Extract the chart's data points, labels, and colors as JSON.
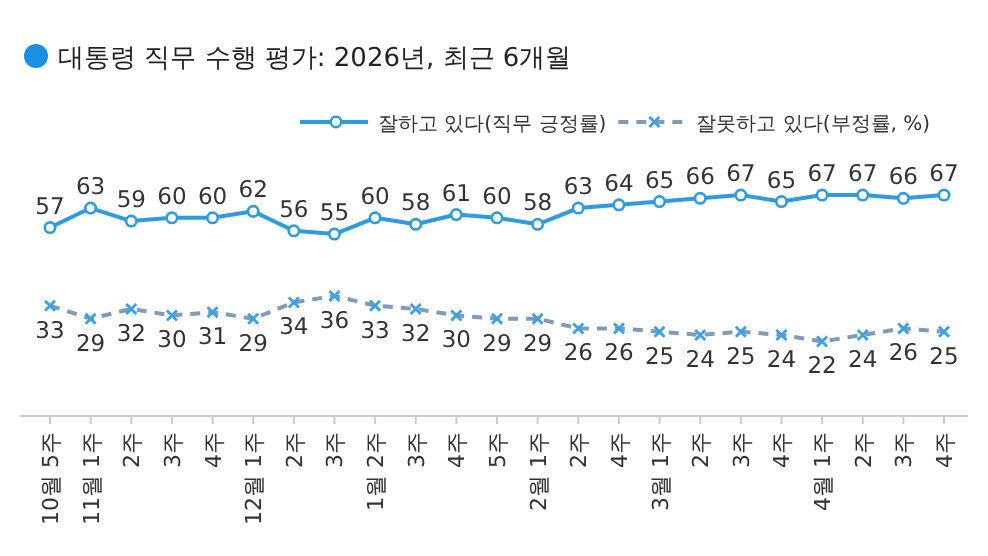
{
  "chart_data": {
    "type": "line",
    "title": "대통령 직무 수행 평가: 2026년, 최근 6개월",
    "categories": [
      "10월 5주",
      "11월 1주",
      "2주",
      "3주",
      "4주",
      "12월 1주",
      "2주",
      "3주",
      "1월 2주",
      "3주",
      "4주",
      "5주",
      "2월 1주",
      "2주",
      "4주",
      "3월 1주",
      "2주",
      "3주",
      "4주",
      "4월 1주",
      "2주",
      "3주",
      "4주"
    ],
    "series": [
      {
        "name": "잘하고 있다(직무 긍정률)",
        "color": "#2e9be0",
        "marker": "circle",
        "line_style": "solid",
        "values": [
          57,
          63,
          59,
          60,
          60,
          62,
          56,
          55,
          60,
          58,
          61,
          60,
          58,
          63,
          64,
          65,
          66,
          67,
          65,
          67,
          67,
          66,
          67
        ]
      },
      {
        "name": "잘못하고 있다(부정률, %)",
        "color": "#7f9bb8",
        "marker": "cross",
        "line_style": "dashed",
        "values": [
          33,
          29,
          32,
          30,
          31,
          29,
          34,
          36,
          33,
          32,
          30,
          29,
          29,
          26,
          26,
          25,
          24,
          25,
          24,
          22,
          24,
          26,
          25
        ]
      }
    ],
    "tick_labels": "x",
    "data_labels": true,
    "grid": false,
    "legend": "top right"
  }
}
